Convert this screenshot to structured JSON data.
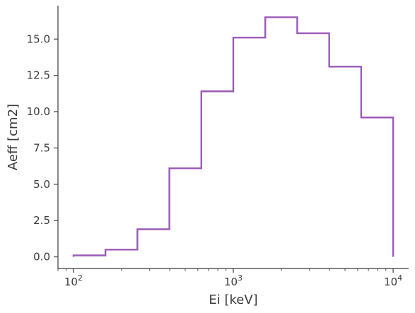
{
  "chart_data": {
    "type": "line",
    "drawstyle": "steps",
    "title": "",
    "xlabel": "Ei [keV]",
    "ylabel": "Aeff [cm2]",
    "xscale": "log",
    "xlim": [
      80,
      12500
    ],
    "ylim": [
      -0.8,
      17.3
    ],
    "grid": false,
    "color": "#9b59b6",
    "x_ticks": [
      {
        "value": 100,
        "base": "10",
        "exp": "2"
      },
      {
        "value": 1000,
        "base": "10",
        "exp": "3"
      },
      {
        "value": 10000,
        "base": "10",
        "exp": "4"
      }
    ],
    "y_ticks": [
      {
        "value": 0.0,
        "label": "0.0"
      },
      {
        "value": 2.5,
        "label": "2.5"
      },
      {
        "value": 5.0,
        "label": "5.0"
      },
      {
        "value": 7.5,
        "label": "7.5"
      },
      {
        "value": 10.0,
        "label": "10.0"
      },
      {
        "value": 12.5,
        "label": "12.5"
      },
      {
        "value": 15.0,
        "label": "15.0"
      }
    ],
    "bin_edges": [
      100,
      158.5,
      251.2,
      398.1,
      631,
      1000,
      1585,
      2512,
      3981,
      6310,
      10000
    ],
    "values": [
      0.1,
      0.5,
      1.9,
      6.1,
      11.4,
      15.1,
      16.5,
      15.4,
      13.1,
      9.6
    ],
    "end_value": 0.0
  }
}
